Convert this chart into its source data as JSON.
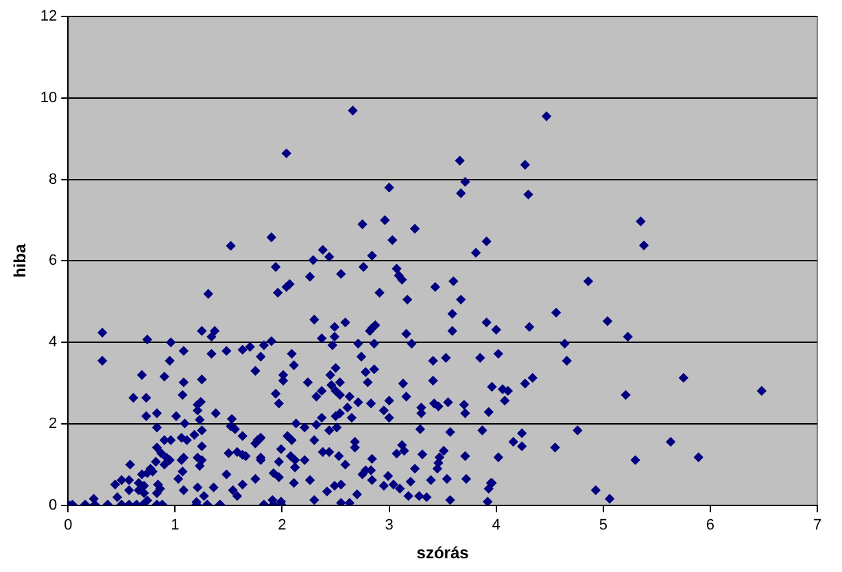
{
  "chart_data": {
    "type": "scatter",
    "xlabel": "szórás",
    "ylabel": "hiba",
    "xlim": [
      0,
      7
    ],
    "xticks": [
      0,
      1,
      2,
      3,
      4,
      5,
      6,
      7
    ],
    "ylim": [
      0,
      12
    ],
    "yticks": [
      0,
      2,
      4,
      6,
      8,
      10,
      12
    ],
    "grid": "y",
    "legend": false,
    "marker": "diamond",
    "series": [
      {
        "color": "#000080",
        "x": [
          4.47,
          4.27,
          4.3,
          5.35,
          5.38,
          4.86,
          4.56,
          5.04,
          4.31,
          4.0,
          5.23,
          4.64,
          4.02,
          4.66,
          5.75,
          4.34,
          4.27,
          3.96,
          4.06,
          4.11,
          6.48,
          5.21,
          4.08,
          4.76,
          4.24,
          4.16,
          5.63,
          4.24,
          4.55,
          4.02,
          5.89,
          5.3,
          4.93,
          5.06,
          3.96,
          2.66,
          2.04,
          3.66,
          3.71,
          3.67,
          3.0,
          1.9,
          2.75,
          2.96,
          3.24,
          3.03,
          3.91,
          3.81,
          2.38,
          2.44,
          2.84,
          2.29,
          1.94,
          2.76,
          3.07,
          3.09,
          3.12,
          2.26,
          2.55,
          2.07,
          2.04,
          1.96,
          2.91,
          3.43,
          3.6,
          3.17,
          3.67,
          3.59,
          2.3,
          2.59,
          3.91,
          2.49,
          2.87,
          2.84,
          2.82,
          3.59,
          2.37,
          2.49,
          3.16,
          1.9,
          2.47,
          2.71,
          2.86,
          3.21,
          2.09,
          2.74,
          3.41,
          3.53,
          3.85,
          2.11,
          2.5,
          2.86,
          2.01,
          2.01,
          2.45,
          2.78,
          2.8,
          3.41,
          2.24,
          2.46,
          2.54,
          3.13,
          1.94,
          2.37,
          2.32,
          2.5,
          2.54,
          2.63,
          3.16,
          1.97,
          2.71,
          2.83,
          3.0,
          3.42,
          3.46,
          3.55,
          3.7,
          3.71,
          3.93,
          3.3,
          3.3,
          2.61,
          2.37,
          2.5,
          2.54,
          2.65,
          2.95,
          3.0,
          2.13,
          2.21,
          2.32,
          2.51,
          2.44,
          3.29,
          3.57,
          3.87,
          2.05,
          2.09,
          2.3,
          2.68,
          2.68,
          1.99,
          2.38,
          2.44,
          3.12,
          3.14,
          3.07,
          3.51,
          3.71,
          3.31,
          3.47,
          2.53,
          2.08,
          2.12,
          2.21,
          1.97,
          2.59,
          2.84,
          3.46,
          2.12,
          2.78,
          2.83,
          3.45,
          3.24,
          1.92,
          1.97,
          2.75,
          2.84,
          2.99,
          2.26,
          2.11,
          2.95,
          3.04,
          3.1,
          3.2,
          3.39,
          3.54,
          3.72,
          3.95,
          3.93,
          2.42,
          2.49,
          2.55,
          2.7,
          3.18,
          3.28,
          3.35,
          2.3,
          2.55,
          2.63,
          3.57,
          3.92,
          1.91,
          1.99,
          1.52,
          1.31,
          0.32,
          0.32,
          0.74,
          0.96,
          1.25,
          1.37,
          1.34,
          1.08,
          0.95,
          1.34,
          1.48,
          1.63,
          1.7,
          1.83,
          1.8,
          1.75,
          0.69,
          0.9,
          1.08,
          1.25,
          0.61,
          0.73,
          1.07,
          1.21,
          1.24,
          1.21,
          1.23,
          1.38,
          0.73,
          0.83,
          1.01,
          1.09,
          0.83,
          1.53,
          1.52,
          1.56,
          1.63,
          1.77,
          1.8,
          0.9,
          0.96,
          1.06,
          1.11,
          1.18,
          1.25,
          0.83,
          0.87,
          0.92,
          0.95,
          0.82,
          0.9,
          1.08,
          1.06,
          1.25,
          1.21,
          1.25,
          1.23,
          1.5,
          1.58,
          1.63,
          1.66,
          1.75,
          1.79,
          1.8,
          1.8,
          0.58,
          0.77,
          0.79,
          0.74,
          0.69,
          0.5,
          0.57,
          0.44,
          0.66,
          0.71,
          0.66,
          0.57,
          0.71,
          0.84,
          0.86,
          0.83,
          1.08,
          1.03,
          1.07,
          1.21,
          1.27,
          1.36,
          1.48,
          1.54,
          1.58,
          1.63,
          1.75,
          0.46,
          0.24,
          0.0,
          0.04,
          0.16,
          0.25,
          0.37,
          0.5,
          0.57,
          0.64,
          0.7,
          0.83,
          0.88,
          1.2,
          1.3,
          1.42,
          1.83,
          1.92,
          1.99,
          0.74,
          1.2
        ],
        "values": [
          9.55,
          8.36,
          7.63,
          6.97,
          6.38,
          5.5,
          4.73,
          4.52,
          4.38,
          4.31,
          4.14,
          3.97,
          3.72,
          3.55,
          3.13,
          3.13,
          2.99,
          2.91,
          2.85,
          2.81,
          2.81,
          2.71,
          2.57,
          1.84,
          1.77,
          1.56,
          1.56,
          1.45,
          1.42,
          1.18,
          1.18,
          1.11,
          0.37,
          0.16,
          0.55,
          9.69,
          8.64,
          8.46,
          7.94,
          7.66,
          7.8,
          6.58,
          6.9,
          7.0,
          6.79,
          6.51,
          6.48,
          6.2,
          6.27,
          6.1,
          6.13,
          6.02,
          5.85,
          5.85,
          5.81,
          5.64,
          5.54,
          5.61,
          5.68,
          5.43,
          5.36,
          5.22,
          5.22,
          5.36,
          5.5,
          5.05,
          5.05,
          4.7,
          4.56,
          4.49,
          4.49,
          4.38,
          4.42,
          4.35,
          4.28,
          4.28,
          4.1,
          4.14,
          4.21,
          4.03,
          3.93,
          3.97,
          3.97,
          3.97,
          3.72,
          3.65,
          3.55,
          3.62,
          3.62,
          3.44,
          3.37,
          3.34,
          3.2,
          3.06,
          3.2,
          3.27,
          3.02,
          3.06,
          3.02,
          2.95,
          3.02,
          2.99,
          2.74,
          2.81,
          2.67,
          2.81,
          2.71,
          2.67,
          2.67,
          2.5,
          2.53,
          2.5,
          2.57,
          2.5,
          2.43,
          2.53,
          2.47,
          2.26,
          2.29,
          2.4,
          2.26,
          2.4,
          2.15,
          2.19,
          2.26,
          2.15,
          2.33,
          2.15,
          2.01,
          1.91,
          1.98,
          1.91,
          1.84,
          1.87,
          1.8,
          1.84,
          1.7,
          1.6,
          1.6,
          1.56,
          1.42,
          1.38,
          1.31,
          1.31,
          1.48,
          1.34,
          1.27,
          1.34,
          1.21,
          1.25,
          1.18,
          1.21,
          1.21,
          1.11,
          1.11,
          1.07,
          1.0,
          1.14,
          1.04,
          0.93,
          0.86,
          0.86,
          0.9,
          0.9,
          0.79,
          0.69,
          0.76,
          0.62,
          0.72,
          0.62,
          0.55,
          0.48,
          0.51,
          0.41,
          0.58,
          0.62,
          0.65,
          0.65,
          0.55,
          0.41,
          0.34,
          0.48,
          0.51,
          0.27,
          0.23,
          0.23,
          0.2,
          0.13,
          0.06,
          0.06,
          0.13,
          0.09,
          0.13,
          0.09,
          6.37,
          5.19,
          4.24,
          3.55,
          4.07,
          4.0,
          4.28,
          4.28,
          4.14,
          3.79,
          3.55,
          3.72,
          3.79,
          3.82,
          3.89,
          3.93,
          3.65,
          3.3,
          3.2,
          3.16,
          3.02,
          3.09,
          2.64,
          2.64,
          2.71,
          2.47,
          2.54,
          2.33,
          2.1,
          2.26,
          2.19,
          2.26,
          2.19,
          2.01,
          1.91,
          2.12,
          1.94,
          1.87,
          1.7,
          1.6,
          1.66,
          1.6,
          1.6,
          1.66,
          1.6,
          1.73,
          1.84,
          1.42,
          1.28,
          1.17,
          1.11,
          1.07,
          1.0,
          1.17,
          1.11,
          1.45,
          1.17,
          1.11,
          0.97,
          1.28,
          1.31,
          1.24,
          1.21,
          1.52,
          1.63,
          1.17,
          1.11,
          1.0,
          0.9,
          0.83,
          0.79,
          0.76,
          0.62,
          0.62,
          0.51,
          0.55,
          0.48,
          0.37,
          0.37,
          0.3,
          0.51,
          0.41,
          0.3,
          0.37,
          0.65,
          0.83,
          0.44,
          0.23,
          0.44,
          0.76,
          0.37,
          0.23,
          0.51,
          0.65,
          0.2,
          0.16,
          0.02,
          0.02,
          0.02,
          0.02,
          0.02,
          0.02,
          0.02,
          0.02,
          0.02,
          0.02,
          0.02,
          0.02,
          0.02,
          0.02,
          0.02,
          0.02,
          0.02,
          0.12,
          0.08
        ]
      }
    ]
  }
}
